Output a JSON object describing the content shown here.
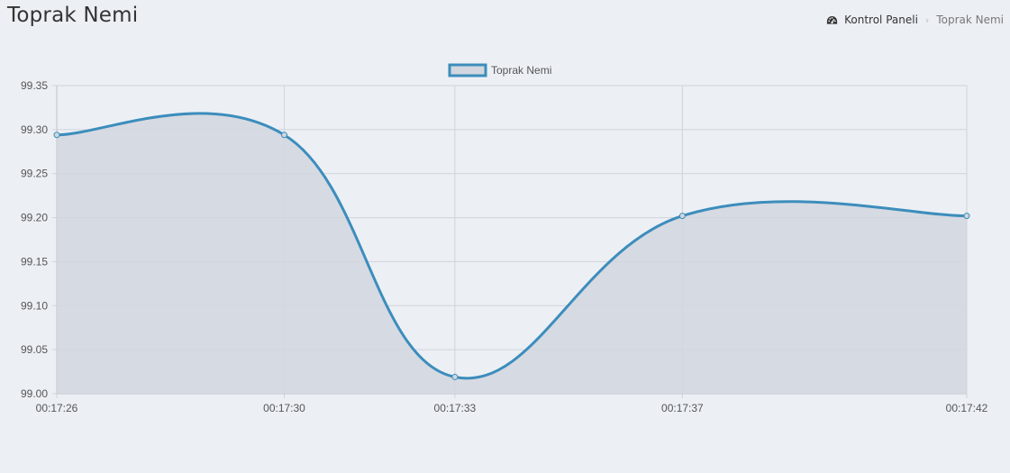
{
  "header": {
    "title": "Toprak Nemi"
  },
  "breadcrumb": {
    "home_label": "Kontrol Paneli",
    "current_label": "Toprak Nemi",
    "home_icon": "dashboard-icon",
    "separator": "›"
  },
  "colors": {
    "line": "#3c8dbc",
    "fill": "#d2d6de",
    "grid": "#d0d3d9",
    "axis_text": "#555555"
  },
  "chart_data": {
    "type": "area",
    "title": "",
    "xlabel": "",
    "ylabel": "",
    "legend_position": "top-center",
    "grid": true,
    "ylim": [
      99.0,
      99.35
    ],
    "y_ticks": [
      "99.35",
      "99.30",
      "99.25",
      "99.20",
      "99.15",
      "99.10",
      "99.05",
      "99.00"
    ],
    "categories": [
      "00:17:26",
      "00:17:30",
      "00:17:33",
      "00:17:37",
      "00:17:42"
    ],
    "series": [
      {
        "name": "Toprak Nemi",
        "values": [
          99.294,
          99.294,
          99.019,
          99.202,
          99.202
        ]
      }
    ]
  }
}
